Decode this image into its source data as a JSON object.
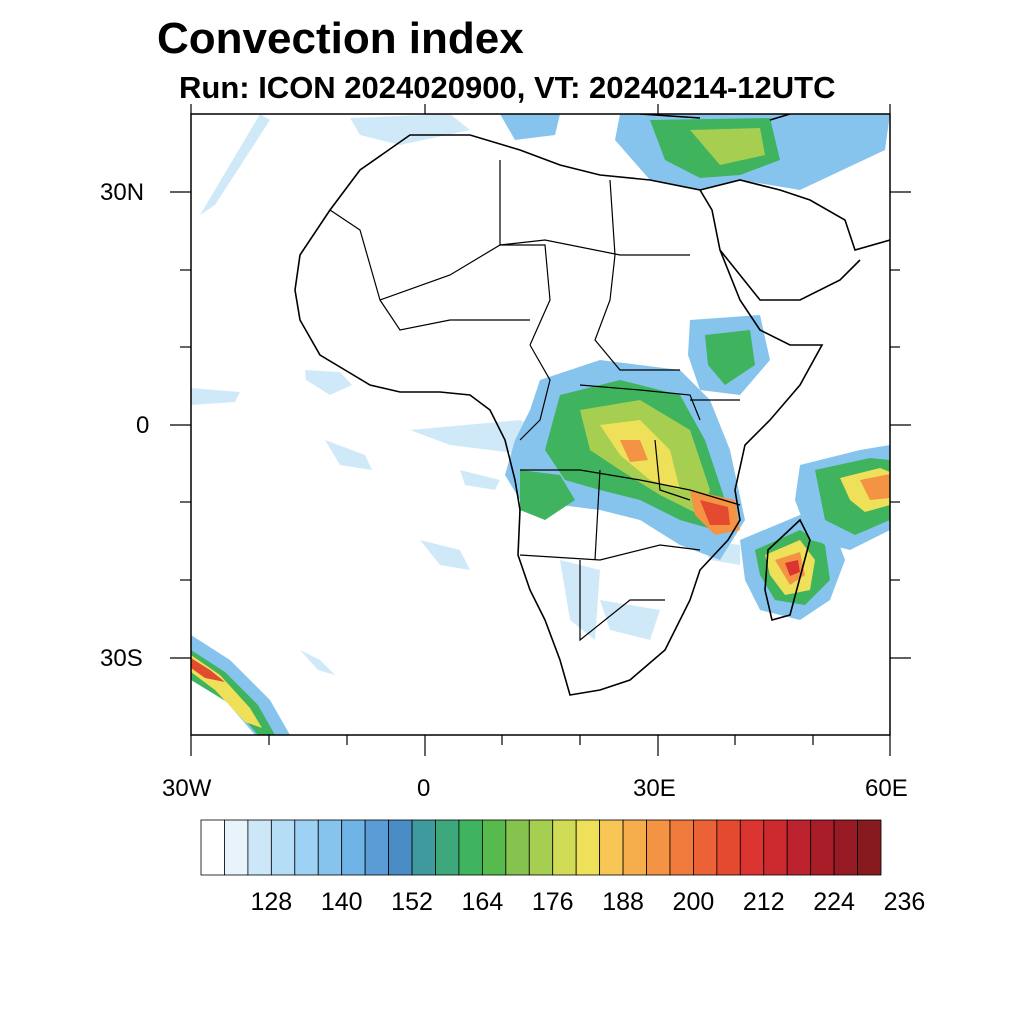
{
  "title": "Convection index",
  "subtitle": "Run: ICON 2024020900,  VT: 20240214-12UTC",
  "map": {
    "lat_labels": [
      "30N",
      "0",
      "30S"
    ],
    "lon_labels": [
      "30W",
      "0",
      "30E",
      "60E"
    ],
    "lon_range": [
      -30,
      60
    ],
    "lat_range": [
      -40,
      40
    ]
  },
  "colorbar": {
    "colors": [
      "#ffffff",
      "#e8f4fc",
      "#cbe7f8",
      "#b5ddf6",
      "#9dd2f4",
      "#86c4ee",
      "#70b3e6",
      "#5a9dd6",
      "#4a8cc6",
      "#3f9a9e",
      "#3da87c",
      "#3fb35e",
      "#56ba4c",
      "#86c24e",
      "#a6cf51",
      "#d0dc55",
      "#efe05a",
      "#f7c654",
      "#f6ad4c",
      "#f39343",
      "#ef7a3b",
      "#ea6235",
      "#e34a2f",
      "#dc3430",
      "#cc2a2f",
      "#bc232e",
      "#a91d29",
      "#981a24",
      "#871a1e"
    ],
    "labels": [
      "128",
      "140",
      "152",
      "164",
      "176",
      "188",
      "200",
      "212",
      "224",
      "236"
    ]
  }
}
